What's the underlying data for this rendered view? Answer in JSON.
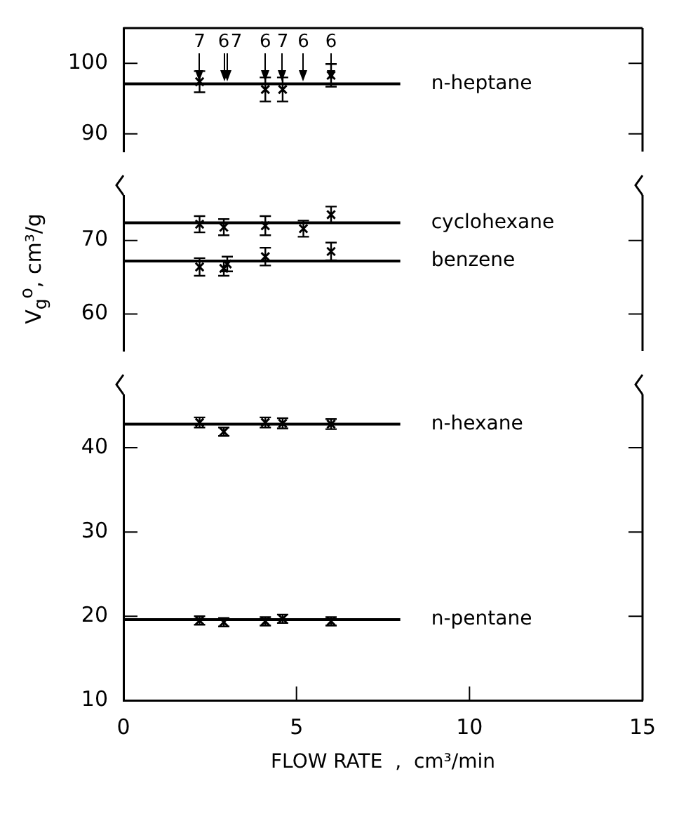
{
  "chart_data": [
    {
      "type": "line",
      "xlim": [
        0,
        15
      ],
      "ylim": [
        87.5,
        105
      ],
      "yticks": [
        90,
        100
      ],
      "tick_labels": "y",
      "series": [
        {
          "name": "n-heptane",
          "type": "line",
          "color": "#000000",
          "x": [
            0,
            8
          ],
          "values": [
            97.1,
            97.1
          ]
        },
        {
          "type": "scatter",
          "color": "#000000",
          "marker": "cross",
          "x": [
            2.2,
            4.1,
            4.6,
            6.0
          ],
          "values": [
            97.4,
            96.3,
            96.3,
            98.3
          ],
          "errors": [
            1.5,
            1.7,
            1.7,
            1.6
          ]
        }
      ],
      "annotations": [
        "7",
        "6",
        "7",
        "6",
        "7",
        "6",
        "6"
      ]
    },
    {
      "type": "line",
      "ylabel": "V$_{g}$$^{o}$, cm³/g",
      "xlim": [
        0,
        15
      ],
      "ylim": [
        55,
        77.5
      ],
      "yticks": [
        60,
        70
      ],
      "tick_labels": "y",
      "series": [
        {
          "name": "cyclohexane",
          "type": "line",
          "color": "#000000",
          "x": [
            0,
            8
          ],
          "values": [
            72.4,
            72.4
          ]
        },
        {
          "type": "scatter",
          "color": "#000000",
          "marker": "cross",
          "x": [
            2.2,
            2.9,
            4.1,
            5.2,
            6.0
          ],
          "values": [
            72.2,
            71.8,
            72.0,
            71.6,
            73.5
          ],
          "errors": [
            1.1,
            1.1,
            1.3,
            1.1,
            1.1
          ]
        },
        {
          "name": "benzene",
          "type": "line",
          "color": "#000000",
          "x": [
            0,
            8
          ],
          "values": [
            67.2,
            67.2
          ]
        },
        {
          "type": "scatter",
          "color": "#000000",
          "marker": "cross",
          "x": [
            2.2,
            2.9,
            3.0,
            4.1,
            6.0
          ],
          "values": [
            66.4,
            66.2,
            66.8,
            67.8,
            68.5
          ],
          "errors": [
            1.2,
            1.0,
            1.0,
            1.2,
            1.2
          ]
        }
      ]
    },
    {
      "type": "line",
      "xlabel": "FLOW RATE  ,  cm³/min",
      "xlim": [
        0,
        15
      ],
      "xticks": [
        0,
        5,
        10,
        15
      ],
      "ylim": [
        10,
        47.5
      ],
      "yticks": [
        10,
        20,
        30,
        40
      ],
      "series": [
        {
          "name": "n-hexane",
          "type": "line",
          "color": "#000000",
          "x": [
            0,
            8
          ],
          "values": [
            42.8,
            42.8
          ]
        },
        {
          "type": "scatter",
          "color": "#000000",
          "marker": "cross",
          "x": [
            2.2,
            2.9,
            4.1,
            4.6,
            6.0
          ],
          "values": [
            43.0,
            41.9,
            43.0,
            42.9,
            42.8
          ],
          "errors": [
            0.6,
            0.5,
            0.6,
            0.6,
            0.6
          ]
        },
        {
          "name": "n-pentane",
          "type": "line",
          "color": "#000000",
          "x": [
            0,
            8
          ],
          "values": [
            19.6,
            19.6
          ]
        },
        {
          "type": "scatter",
          "color": "#000000",
          "marker": "cross",
          "x": [
            2.2,
            2.9,
            4.1,
            4.6,
            6.0
          ],
          "values": [
            19.5,
            19.3,
            19.4,
            19.7,
            19.4
          ],
          "errors": [
            0.5,
            0.5,
            0.5,
            0.5,
            0.5
          ]
        }
      ]
    }
  ]
}
